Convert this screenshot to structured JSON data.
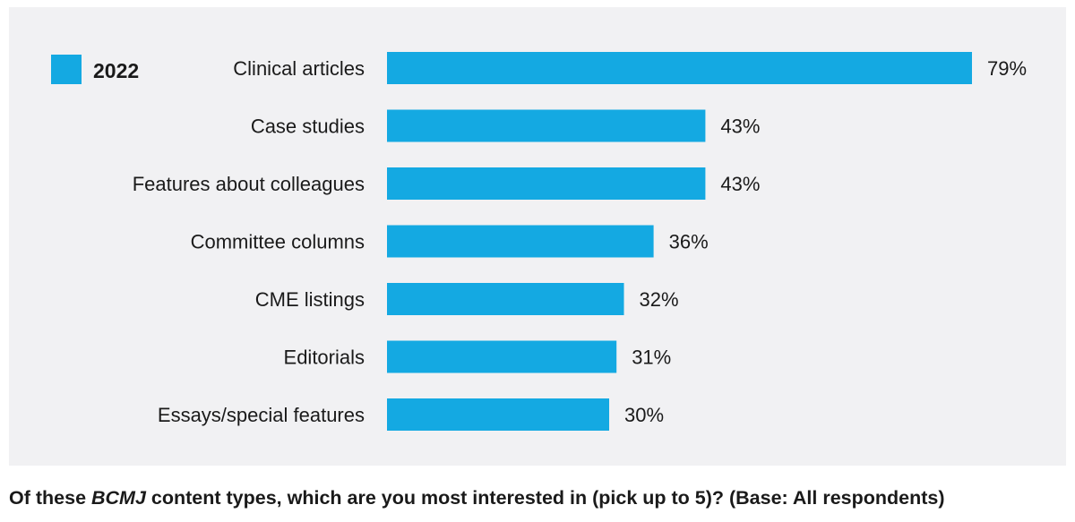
{
  "chart_data": {
    "type": "bar",
    "orientation": "horizontal",
    "title": "",
    "xlabel": "",
    "ylabel": "",
    "categories": [
      "Clinical articles",
      "Case studies",
      "Features about colleagues",
      "Committee columns",
      "CME listings",
      "Editorials",
      "Essays/special features"
    ],
    "series": [
      {
        "name": "2022",
        "values": [
          79,
          43,
          43,
          36,
          32,
          31,
          30
        ],
        "value_labels": [
          "79%",
          "43%",
          "43%",
          "36%",
          "32%",
          "31%",
          "30%"
        ],
        "color": "#14a9e2"
      }
    ],
    "xlim": [
      0,
      79
    ],
    "grid": false,
    "legend_position": "top-left"
  },
  "caption": {
    "before": "Of these ",
    "emphasis": "BCMJ",
    "after": " content types, which are you most interested in (pick up to 5)? (Base: All respondents)"
  }
}
